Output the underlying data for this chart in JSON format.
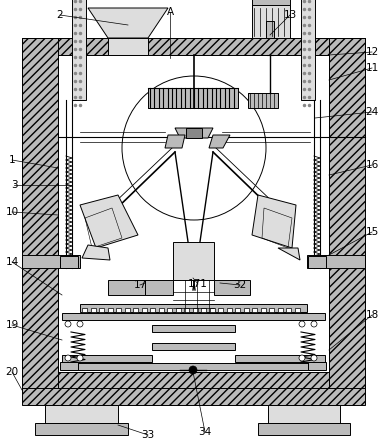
{
  "bg_color": "#ffffff",
  "line_color": "#000000",
  "gray_dark": "#888888",
  "gray_mid": "#bbbbbb",
  "gray_light": "#dddddd",
  "hatch_walls": "////",
  "figsize": [
    3.87,
    4.43
  ],
  "dpi": 100,
  "labels": [
    [
      "2",
      55,
      18
    ],
    [
      "A",
      168,
      14
    ],
    [
      "13",
      278,
      14
    ],
    [
      "12",
      368,
      55
    ],
    [
      "11",
      368,
      72
    ],
    [
      "1",
      14,
      168
    ],
    [
      "24",
      368,
      125
    ],
    [
      "3",
      18,
      188
    ],
    [
      "10",
      14,
      208
    ],
    [
      "16",
      368,
      175
    ],
    [
      "15",
      368,
      230
    ],
    [
      "14",
      14,
      262
    ],
    [
      "17",
      148,
      290
    ],
    [
      "171",
      198,
      290
    ],
    [
      "32",
      232,
      290
    ],
    [
      "19",
      14,
      322
    ],
    [
      "18",
      368,
      308
    ],
    [
      "20",
      14,
      368
    ],
    [
      "33",
      152,
      428
    ],
    [
      "34",
      205,
      428
    ]
  ]
}
